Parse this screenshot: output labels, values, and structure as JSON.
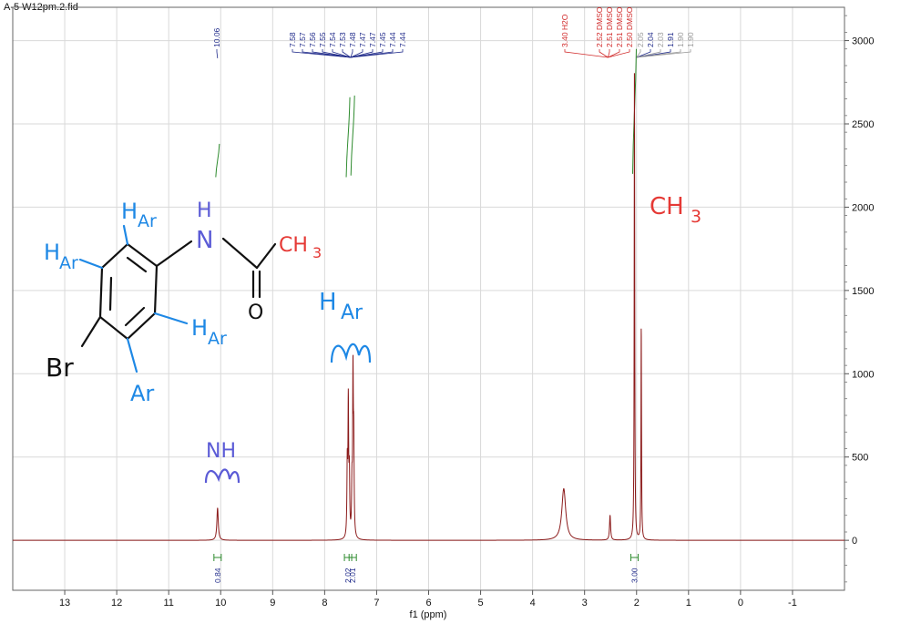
{
  "file_title": "A-5 W12pm.2.fid",
  "chart_data": {
    "type": "line",
    "xlabel": "f1 (ppm)",
    "ylabel": "",
    "xlim": [
      14,
      -2
    ],
    "ylim": [
      -300,
      3200
    ],
    "x_ticks": [
      13,
      12,
      11,
      10,
      9,
      8,
      7,
      6,
      5,
      4,
      3,
      2,
      1,
      0,
      -1
    ],
    "y_ticks": [
      0,
      500,
      1000,
      1500,
      2000,
      2500,
      3000
    ],
    "grid": true,
    "line_color": "#8b1a1a",
    "peaks": [
      {
        "ppm": 10.06,
        "height": 195,
        "width": 0.016
      },
      {
        "ppm": 7.565,
        "height": 420,
        "width": 0.008
      },
      {
        "ppm": 7.545,
        "height": 790,
        "width": 0.008
      },
      {
        "ppm": 7.525,
        "height": 360,
        "width": 0.008
      },
      {
        "ppm": 7.475,
        "height": 280,
        "width": 0.008
      },
      {
        "ppm": 7.455,
        "height": 960,
        "width": 0.008
      },
      {
        "ppm": 7.44,
        "height": 510,
        "width": 0.008
      },
      {
        "ppm": 3.4,
        "height": 310,
        "width": 0.045
      },
      {
        "ppm": 2.51,
        "height": 150,
        "width": 0.012
      },
      {
        "ppm": 2.04,
        "height": 2900,
        "width": 0.006
      },
      {
        "ppm": 1.91,
        "height": 1290,
        "width": 0.006
      }
    ],
    "peak_labels": {
      "group_a": {
        "values": [
          "10.06"
        ],
        "color": "#1f2a8a"
      },
      "group_b": {
        "values": [
          "7.58",
          "7.57",
          "7.56",
          "7.55",
          "7.54",
          "7.53",
          "7.48",
          "7.47",
          "7.47",
          "7.45",
          "7.44",
          "7.44"
        ],
        "color": "#1f2a8a"
      },
      "group_c": {
        "values": [
          "3.40 H2O",
          "2.52 DMSO",
          "2.51 DMSO",
          "2.51 DMSO",
          "2.50 DMSO"
        ],
        "color": "#d12a2a"
      },
      "group_d": {
        "values": [
          "2.05",
          "2.04",
          "2.03",
          "1.91",
          "1.90",
          "1.90"
        ],
        "colors": [
          "#999999",
          "#1f2a8a",
          "#999999",
          "#1f2a8a",
          "#999999",
          "#999999"
        ]
      }
    },
    "integrations": [
      {
        "ppm": 10.06,
        "value": "0.84"
      },
      {
        "ppm": 7.55,
        "value": "2.02"
      },
      {
        "ppm": 7.46,
        "value": "2.01"
      },
      {
        "ppm": 2.04,
        "value": "3.00"
      }
    ]
  },
  "annotations": {
    "h_ar_top": "H",
    "ar_sub_top": "Ar",
    "h_nh": "H",
    "n_atom": "N",
    "ch3_struct": "CH",
    "ch3_struct_sub": "3",
    "h_ar_left": "H",
    "ar_sub_left": "Ar",
    "h_ar_right": "H",
    "ar_sub_right": "Ar",
    "o_atom": "O",
    "br_atom": "Br",
    "ar_bottom": "Ar",
    "h_ar_peak": "H",
    "ar_peak": "Ar",
    "nh_peak": "NH",
    "ch3_peak": "CH",
    "ch3_peak_sub": "3",
    "structure_color": "#111111",
    "aromatic_label_color": "#1e88e5",
    "nh_label_color": "#5b5bd6",
    "methyl_label_color": "#e53935"
  }
}
